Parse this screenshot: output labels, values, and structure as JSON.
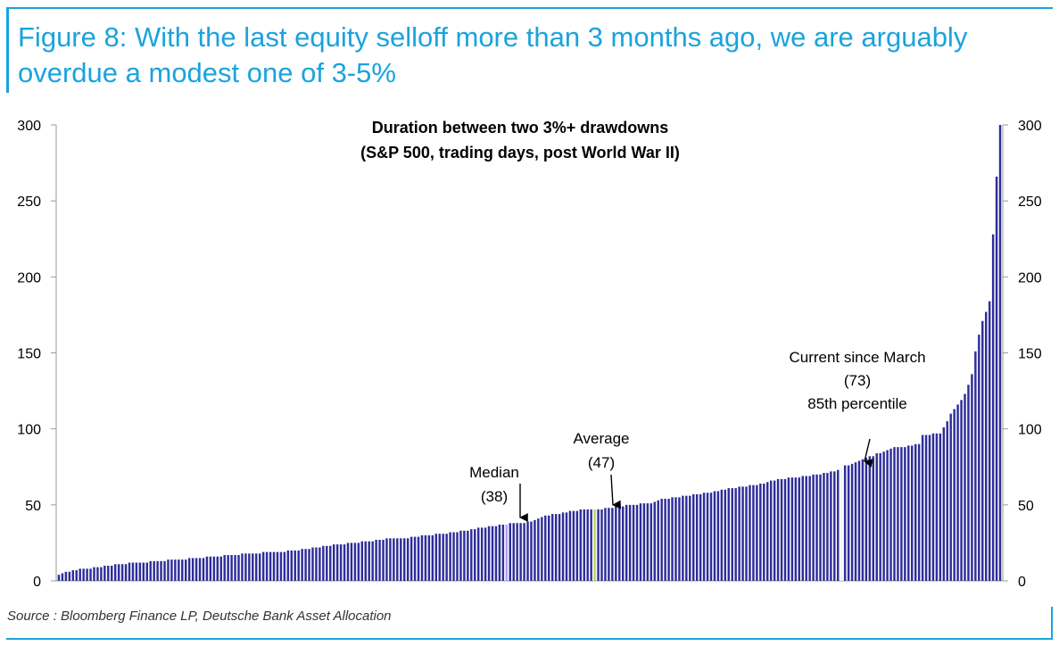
{
  "figure": {
    "title": "Figure 8: With the last equity selloff more than 3 months ago, we are arguably overdue a modest one of 3-5%",
    "source": "Source : Bloomberg Finance LP, Deutsche Bank Asset Allocation"
  },
  "colors": {
    "accent": "#1aa3dd",
    "bar": "#2d2d9a",
    "median_bar": "#b59cff",
    "average_bar": "#b8d44a",
    "current_bar": "#f2f2f2"
  },
  "chart_data": {
    "type": "bar",
    "title_lines": [
      "Duration between two 3%+ drawdowns",
      "(S&P 500, trading days, post World War II)"
    ],
    "xlabel": "",
    "ylabel": "",
    "ylim": [
      0,
      300
    ],
    "yticks": [
      0,
      50,
      100,
      150,
      200,
      250,
      300
    ],
    "grid": false,
    "sorted_ascending": true,
    "highlight": {
      "median_index": 127,
      "average_index": 152,
      "current_index": 222
    },
    "annotations": [
      {
        "lines": [
          "Median",
          "(38)"
        ],
        "value": 38
      },
      {
        "lines": [
          "Average",
          "(47)"
        ],
        "value": 47
      },
      {
        "lines": [
          "Current since March",
          "(73)",
          "85th percentile"
        ],
        "value": 73
      }
    ],
    "values": [
      4,
      5,
      6,
      6,
      7,
      7,
      8,
      8,
      8,
      8,
      9,
      9,
      9,
      10,
      10,
      10,
      11,
      11,
      11,
      11,
      12,
      12,
      12,
      12,
      12,
      12,
      13,
      13,
      13,
      13,
      13,
      14,
      14,
      14,
      14,
      14,
      14,
      15,
      15,
      15,
      15,
      15,
      16,
      16,
      16,
      16,
      16,
      17,
      17,
      17,
      17,
      17,
      18,
      18,
      18,
      18,
      18,
      18,
      19,
      19,
      19,
      19,
      19,
      19,
      19,
      20,
      20,
      20,
      20,
      21,
      21,
      21,
      22,
      22,
      22,
      23,
      23,
      23,
      24,
      24,
      24,
      24,
      25,
      25,
      25,
      25,
      26,
      26,
      26,
      26,
      27,
      27,
      27,
      28,
      28,
      28,
      28,
      28,
      28,
      28,
      29,
      29,
      29,
      30,
      30,
      30,
      30,
      31,
      31,
      31,
      31,
      32,
      32,
      32,
      33,
      33,
      33,
      34,
      34,
      35,
      35,
      35,
      36,
      36,
      36,
      37,
      37,
      37,
      38,
      38,
      38,
      38,
      38,
      39,
      39,
      40,
      41,
      42,
      43,
      43,
      44,
      44,
      44,
      45,
      45,
      46,
      46,
      46,
      47,
      47,
      47,
      47,
      47,
      47,
      47,
      48,
      48,
      48,
      49,
      49,
      49,
      50,
      50,
      50,
      50,
      51,
      51,
      51,
      51,
      52,
      53,
      54,
      54,
      54,
      55,
      55,
      55,
      56,
      56,
      56,
      57,
      57,
      57,
      58,
      58,
      58,
      59,
      59,
      60,
      60,
      61,
      61,
      61,
      62,
      62,
      62,
      63,
      63,
      63,
      64,
      64,
      65,
      66,
      66,
      67,
      67,
      67,
      68,
      68,
      68,
      68,
      69,
      69,
      69,
      70,
      70,
      70,
      71,
      71,
      72,
      72,
      73,
      74,
      76,
      76,
      77,
      78,
      79,
      80,
      81,
      82,
      82,
      84,
      84,
      85,
      86,
      87,
      88,
      88,
      88,
      88,
      89,
      89,
      90,
      90,
      96,
      96,
      96,
      97,
      97,
      97,
      101,
      105,
      110,
      113,
      116,
      119,
      123,
      129,
      136,
      151,
      162,
      171,
      177,
      184,
      228,
      266,
      300
    ]
  }
}
